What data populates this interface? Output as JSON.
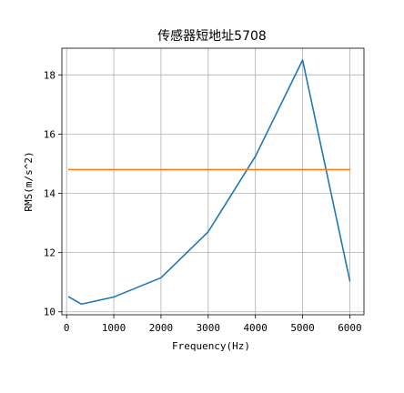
{
  "chart_data": {
    "type": "line",
    "title": "传感器短地址5708",
    "xlabel": "Frequency(Hz)",
    "ylabel": "RMS(m/s^2)",
    "xlim": [
      -100,
      6300
    ],
    "ylim": [
      9.9,
      18.9
    ],
    "xticks": [
      0,
      1000,
      2000,
      3000,
      4000,
      5000,
      6000
    ],
    "yticks": [
      10,
      12,
      14,
      16,
      18
    ],
    "grid": true,
    "series": [
      {
        "color": "#1f77b4",
        "x": [
          50,
          315,
          1000,
          2000,
          3000,
          4000,
          5000,
          6000
        ],
        "y": [
          10.5,
          10.26,
          10.5,
          11.15,
          12.7,
          15.25,
          18.5,
          11.05
        ]
      },
      {
        "color": "#ff7f0e",
        "x": [
          50,
          6000
        ],
        "y": [
          14.8,
          14.8
        ]
      }
    ]
  }
}
